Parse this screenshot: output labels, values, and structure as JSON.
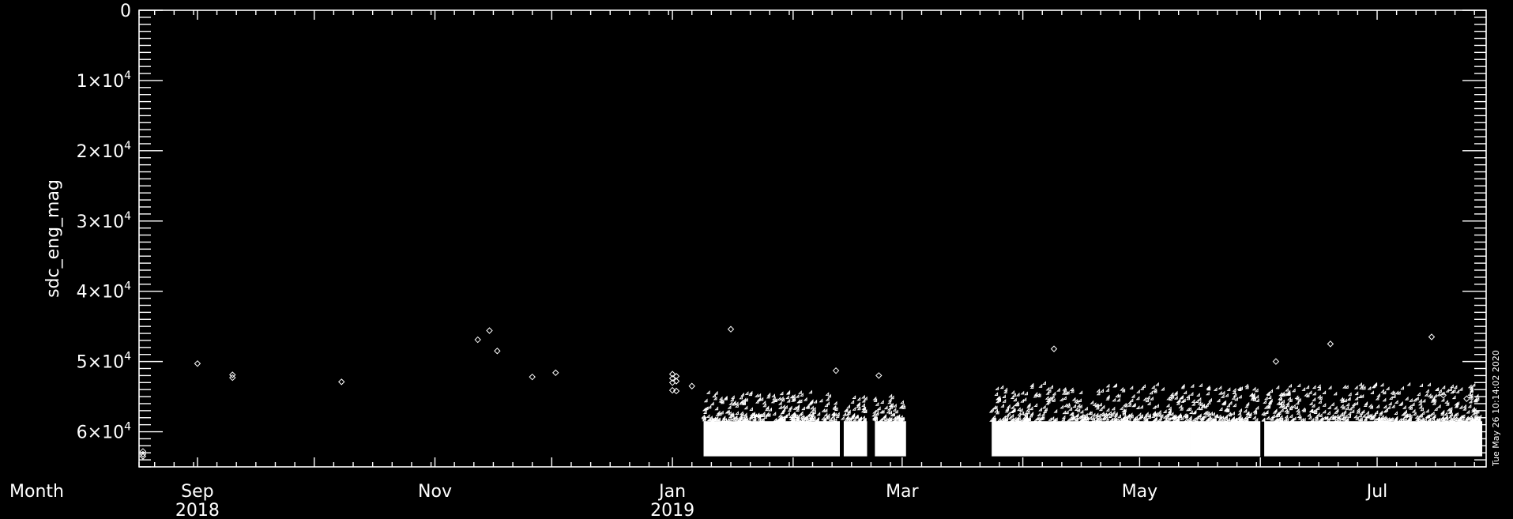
{
  "chart_data": {
    "type": "scatter",
    "marker": "diamond",
    "ylabel": "sdc_eng_mag",
    "y_reversed": true,
    "ylim": [
      0,
      65000
    ],
    "y_ticks": [
      {
        "value": 0,
        "mant": "0",
        "exp": ""
      },
      {
        "value": 10000,
        "mant": "1×10",
        "exp": "4"
      },
      {
        "value": 20000,
        "mant": "2×10",
        "exp": "4"
      },
      {
        "value": 30000,
        "mant": "3×10",
        "exp": "4"
      },
      {
        "value": 40000,
        "mant": "4×10",
        "exp": "4"
      },
      {
        "value": 50000,
        "mant": "5×10",
        "exp": "4"
      },
      {
        "value": 60000,
        "mant": "6×10",
        "exp": "4"
      }
    ],
    "xlabel": "Month",
    "xlim": [
      "2018-08-17",
      "2019-07-29"
    ],
    "x_ticks": [
      {
        "date": "2018-09-01",
        "label": "Sep",
        "year": "2018"
      },
      {
        "date": "2018-11-01",
        "label": "Nov",
        "year": ""
      },
      {
        "date": "2019-01-01",
        "label": "Jan",
        "year": "2019"
      },
      {
        "date": "2019-03-01",
        "label": "Mar",
        "year": ""
      },
      {
        "date": "2019-05-01",
        "label": "May",
        "year": ""
      },
      {
        "date": "2019-07-01",
        "label": "Jul",
        "year": ""
      }
    ],
    "points": [
      [
        "2018-08-18",
        62800
      ],
      [
        "2018-08-18",
        63200
      ],
      [
        "2018-08-18",
        63500
      ],
      [
        "2018-09-01",
        50300
      ],
      [
        "2018-09-10",
        51900
      ],
      [
        "2018-09-10",
        52300
      ],
      [
        "2018-10-08",
        52900
      ],
      [
        "2018-11-12",
        46900
      ],
      [
        "2018-11-15",
        45600
      ],
      [
        "2018-11-17",
        48500
      ],
      [
        "2018-11-26",
        52200
      ],
      [
        "2018-12-02",
        51600
      ],
      [
        "2019-01-01",
        51800
      ],
      [
        "2019-01-01",
        52400
      ],
      [
        "2019-01-01",
        53000
      ],
      [
        "2019-01-01",
        54100
      ],
      [
        "2019-01-02",
        52100
      ],
      [
        "2019-01-02",
        52800
      ],
      [
        "2019-01-02",
        54200
      ],
      [
        "2019-01-06",
        53500
      ],
      [
        "2019-01-16",
        45400
      ],
      [
        "2019-02-12",
        51300
      ],
      [
        "2019-02-23",
        52000
      ],
      [
        "2019-04-09",
        48200
      ],
      [
        "2019-06-05",
        50000
      ],
      [
        "2019-06-19",
        47500
      ],
      [
        "2019-07-15",
        46500
      ],
      [
        "2019-07-18",
        54800
      ],
      [
        "2019-07-24",
        55300
      ]
    ],
    "dense_bands": [
      {
        "from": "2019-01-09",
        "to": "2019-02-13",
        "y_top": 54500,
        "y_bottom": 63500
      },
      {
        "from": "2019-02-14",
        "to": "2019-02-20",
        "y_top": 55200,
        "y_bottom": 63500
      },
      {
        "from": "2019-02-22",
        "to": "2019-03-02",
        "y_top": 54800,
        "y_bottom": 63500
      },
      {
        "from": "2019-03-24",
        "to": "2019-05-14",
        "y_top": 53200,
        "y_bottom": 63500
      },
      {
        "from": "2019-05-14",
        "to": "2019-06-01",
        "y_top": 53500,
        "y_bottom": 63500
      },
      {
        "from": "2019-06-02",
        "to": "2019-07-28",
        "y_top": 53400,
        "y_bottom": 63500
      }
    ]
  },
  "timestamp": "Tue May 26 10:14:02 2020"
}
